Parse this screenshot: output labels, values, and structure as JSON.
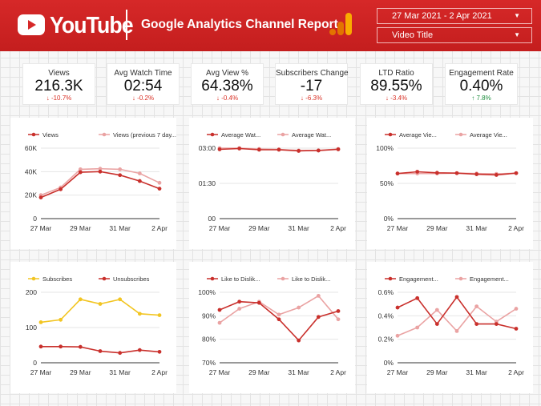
{
  "header": {
    "brand": "YouTube",
    "title": "Google Analytics Channel Report",
    "date_range": "27 Mar 2021 - 2 Apr 2021",
    "filter": "Video Title",
    "colors": {
      "bar": "#d62828",
      "accent": "#fbbc04"
    }
  },
  "kpis": [
    {
      "label": "Views",
      "value": "216.3K",
      "change": "-10.7%",
      "direction": "down"
    },
    {
      "label": "Avg Watch Time",
      "value": "02:54",
      "change": "-0.2%",
      "direction": "down"
    },
    {
      "label": "Avg View %",
      "value": "64.38%",
      "change": "-0.4%",
      "direction": "down"
    },
    {
      "label": "Subscribers Change",
      "value": "-17",
      "change": "-6.3%",
      "direction": "down"
    },
    {
      "label": "LTD Ratio",
      "value": "89.55%",
      "change": "-3.4%",
      "direction": "down"
    },
    {
      "label": "Engagement Rate",
      "value": "0.40%",
      "change": "7.8%",
      "direction": "up"
    }
  ],
  "chart_data": [
    {
      "type": "line",
      "x": [
        "27 Mar",
        "28 Mar",
        "29 Mar",
        "30 Mar",
        "31 Mar",
        "1 Apr",
        "2 Apr"
      ],
      "xticks": [
        "27 Mar",
        "29 Mar",
        "31 Mar",
        "2 Apr"
      ],
      "ylim": [
        0,
        60000
      ],
      "yticks": [
        {
          "v": 0,
          "t": "0"
        },
        {
          "v": 20000,
          "t": "20K"
        },
        {
          "v": 40000,
          "t": "40K"
        },
        {
          "v": 60000,
          "t": "60K"
        }
      ],
      "series": [
        {
          "name": "Views",
          "color": "#c9302c",
          "values": [
            18000,
            25000,
            39500,
            40000,
            37000,
            32000,
            25500
          ]
        },
        {
          "name": "Views (previous 7 day...",
          "color": "#eaa3a3",
          "values": [
            20000,
            26500,
            42000,
            42500,
            42000,
            38500,
            30500
          ]
        }
      ]
    },
    {
      "type": "line",
      "x": [
        "27 Mar",
        "28 Mar",
        "29 Mar",
        "30 Mar",
        "31 Mar",
        "1 Apr",
        "2 Apr"
      ],
      "xticks": [
        "27 Mar",
        "29 Mar",
        "31 Mar",
        "2 Apr"
      ],
      "ylim": [
        0,
        180
      ],
      "yticks": [
        {
          "v": 0,
          "t": "00"
        },
        {
          "v": 90,
          "t": "01:30"
        },
        {
          "v": 180,
          "t": "03:00"
        }
      ],
      "series": [
        {
          "name": "Average Wat...",
          "color": "#c9302c",
          "values": [
            177,
            179,
            176,
            176,
            173,
            174,
            177
          ]
        },
        {
          "name": "Average Wat...",
          "color": "#eaa3a3",
          "values": [
            180,
            180,
            178,
            177,
            174,
            174,
            178
          ]
        }
      ]
    },
    {
      "type": "line",
      "x": [
        "27 Mar",
        "28 Mar",
        "29 Mar",
        "30 Mar",
        "31 Mar",
        "1 Apr",
        "2 Apr"
      ],
      "xticks": [
        "27 Mar",
        "29 Mar",
        "31 Mar",
        "2 Apr"
      ],
      "ylim": [
        0,
        100
      ],
      "yticks": [
        {
          "v": 0,
          "t": "0%"
        },
        {
          "v": 50,
          "t": "50%"
        },
        {
          "v": 100,
          "t": "100%"
        }
      ],
      "series": [
        {
          "name": "Average Vie...",
          "color": "#c9302c",
          "values": [
            64,
            66.5,
            65,
            64.5,
            63,
            62,
            64.5
          ]
        },
        {
          "name": "Average Vie...",
          "color": "#eaa3a3",
          "values": [
            64,
            64,
            64,
            64.5,
            64,
            63.5,
            64.5
          ]
        }
      ]
    },
    {
      "type": "line",
      "x": [
        "27 Mar",
        "28 Mar",
        "29 Mar",
        "30 Mar",
        "31 Mar",
        "1 Apr",
        "2 Apr"
      ],
      "xticks": [
        "27 Mar",
        "29 Mar",
        "31 Mar",
        "2 Apr"
      ],
      "ylim": [
        0,
        200
      ],
      "yticks": [
        {
          "v": 0,
          "t": "0"
        },
        {
          "v": 100,
          "t": "100"
        },
        {
          "v": 200,
          "t": "200"
        }
      ],
      "series": [
        {
          "name": "Subscribes",
          "color": "#f2c522",
          "values": [
            115,
            122,
            180,
            167,
            180,
            139,
            135
          ]
        },
        {
          "name": "Unsubscribes",
          "color": "#c9302c",
          "values": [
            46,
            46,
            45,
            33,
            28,
            36,
            31
          ]
        }
      ]
    },
    {
      "type": "line",
      "x": [
        "27 Mar",
        "28 Mar",
        "29 Mar",
        "30 Mar",
        "31 Mar",
        "1 Apr",
        "2 Apr"
      ],
      "xticks": [
        "27 Mar",
        "29 Mar",
        "31 Mar",
        "2 Apr"
      ],
      "ylim": [
        70,
        100
      ],
      "yticks": [
        {
          "v": 70,
          "t": "70%"
        },
        {
          "v": 80,
          "t": "80%"
        },
        {
          "v": 90,
          "t": "90%"
        },
        {
          "v": 100,
          "t": "100%"
        }
      ],
      "series": [
        {
          "name": "Like to Dislik...",
          "color": "#c9302c",
          "values": [
            92.5,
            96,
            95.5,
            88.5,
            79.5,
            89.5,
            92
          ]
        },
        {
          "name": "Like to Dislik...",
          "color": "#eaa3a3",
          "values": [
            87,
            93,
            96,
            90.5,
            93.5,
            98.5,
            88.5
          ]
        }
      ]
    },
    {
      "type": "line",
      "x": [
        "27 Mar",
        "28 Mar",
        "29 Mar",
        "30 Mar",
        "31 Mar",
        "1 Apr",
        "2 Apr"
      ],
      "xticks": [
        "27 Mar",
        "29 Mar",
        "31 Mar",
        "2 Apr"
      ],
      "ylim": [
        0,
        0.6
      ],
      "yticks": [
        {
          "v": 0,
          "t": "0%"
        },
        {
          "v": 0.2,
          "t": "0.2%"
        },
        {
          "v": 0.4,
          "t": "0.4%"
        },
        {
          "v": 0.6,
          "t": "0.6%"
        }
      ],
      "series": [
        {
          "name": "Engagement...",
          "color": "#c9302c",
          "values": [
            0.47,
            0.55,
            0.33,
            0.56,
            0.33,
            0.33,
            0.29
          ]
        },
        {
          "name": "Engagement...",
          "color": "#eaa3a3",
          "values": [
            0.23,
            0.3,
            0.45,
            0.27,
            0.48,
            0.35,
            0.46
          ]
        }
      ]
    }
  ]
}
